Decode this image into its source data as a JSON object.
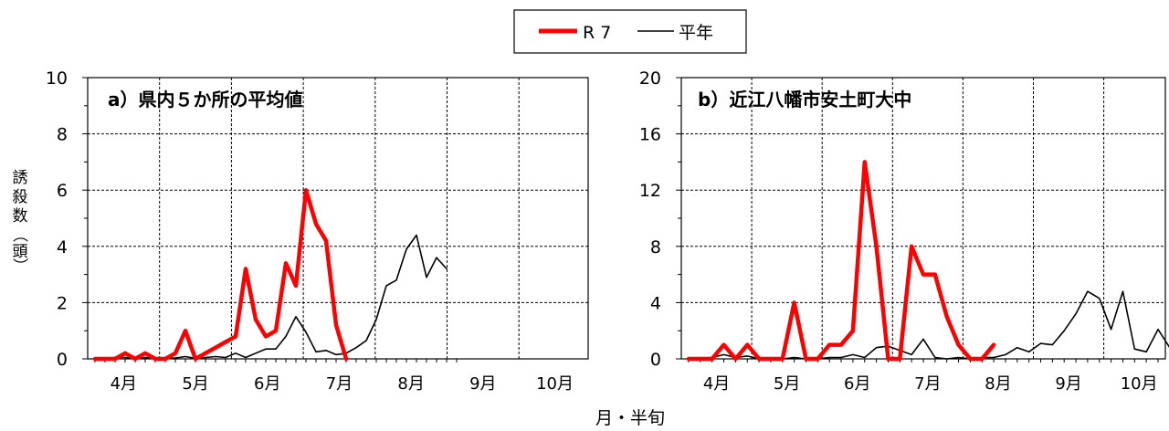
{
  "figure": {
    "y_axis_label_chars": [
      "誘",
      "殺",
      "数",
      "（",
      "頭",
      "）"
    ],
    "x_axis_label": "月・半旬",
    "legend": [
      {
        "name": "R 7",
        "color": "#ff0000",
        "stroke": "thick"
      },
      {
        "name": "平年",
        "color": "#000000",
        "stroke": "thin"
      }
    ]
  },
  "chart_data": [
    {
      "type": "line",
      "title": "a）県内５か所の平均値",
      "xlabel": "月・半旬",
      "ylabel": "誘殺数（頭）",
      "x_tick_labels": [
        "4月",
        "5月",
        "6月",
        "7月",
        "8月",
        "9月",
        "10月"
      ],
      "ylim": [
        0,
        10
      ],
      "yticks": [
        0,
        2,
        4,
        6,
        8,
        10
      ],
      "grid": "dashed",
      "series": [
        {
          "name": "R 7",
          "color": "#ff0000",
          "values": [
            0,
            0,
            0,
            0.2,
            0,
            0.2,
            0,
            0,
            0.2,
            1.0,
            0,
            0.2,
            0.4,
            0.6,
            0.8,
            3.2,
            1.4,
            0.8,
            1.0,
            3.4,
            2.6,
            6.0,
            4.8,
            4.2,
            1.2,
            0
          ]
        },
        {
          "name": "平年",
          "color": "#000000",
          "values": [
            0,
            0.02,
            0.05,
            0.05,
            0.02,
            0.05,
            0.02,
            0.02,
            0.03,
            0.08,
            0.02,
            0.05,
            0.08,
            0.05,
            0.2,
            0.05,
            0.2,
            0.35,
            0.35,
            0.8,
            1.5,
            0.95,
            0.25,
            0.3,
            0.15,
            0.2,
            0.4,
            0.65,
            1.4,
            2.6,
            2.8,
            3.9,
            4.4,
            2.9,
            3.6,
            3.2
          ]
        }
      ]
    },
    {
      "type": "line",
      "title": "b）近江八幡市安土町大中",
      "xlabel": "月・半旬",
      "ylabel": "誘殺数（頭）",
      "x_tick_labels": [
        "4月",
        "5月",
        "6月",
        "7月",
        "8月",
        "9月",
        "10月"
      ],
      "ylim": [
        0,
        20
      ],
      "yticks": [
        0,
        4,
        8,
        12,
        16,
        20
      ],
      "grid": "dashed",
      "series": [
        {
          "name": "R 7",
          "color": "#ff0000",
          "values": [
            0,
            0,
            0,
            1,
            0,
            1,
            0,
            0,
            0,
            4,
            0,
            0,
            1,
            1,
            2,
            14,
            8,
            0,
            0,
            8,
            6,
            6,
            3,
            1,
            0,
            0,
            1
          ]
        },
        {
          "name": "平年",
          "color": "#000000",
          "values": [
            0,
            0,
            0.1,
            0.3,
            0.1,
            0.2,
            0,
            0,
            0,
            0.1,
            0,
            0,
            0.1,
            0.1,
            0.3,
            0.1,
            0.8,
            0.9,
            0.6,
            0.3,
            1.4,
            0.1,
            0,
            0.1,
            0,
            0.1,
            0.1,
            0.3,
            0.8,
            0.5,
            1.1,
            1.0,
            2.0,
            3.2,
            4.8,
            4.3,
            2.1,
            4.8,
            0.7,
            0.5,
            2.1,
            0.8
          ]
        }
      ]
    }
  ]
}
